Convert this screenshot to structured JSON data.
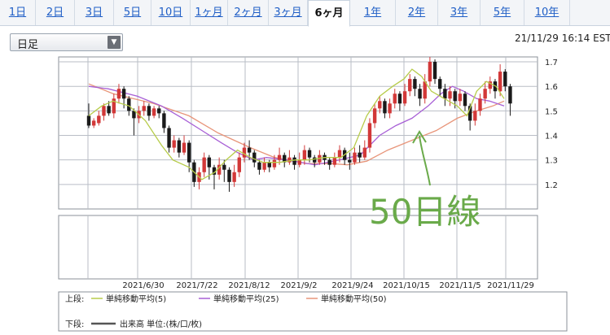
{
  "tabs": [
    "1日",
    "2日",
    "3日",
    "5日",
    "10日",
    "1ヶ月",
    "2ヶ月",
    "3ヶ月",
    "6ヶ月",
    "1年",
    "2年",
    "3年",
    "5年",
    "10年"
  ],
  "active_tab": "6ヶ月",
  "period_select": "日足",
  "timestamp": "21/11/29 16:14 EST",
  "annotation": "50日線",
  "colors": {
    "up": "#d23838",
    "down": "#1a1a1a",
    "ma5": "#b7cc4a",
    "ma25": "#a860d6",
    "ma50": "#e8957a",
    "annot": "#6aaa4a",
    "grid": "#b9bec6"
  },
  "chart_data": {
    "type": "candlestick",
    "ylim": [
      1.1,
      1.72
    ],
    "yticks": [
      "1.2",
      "1.3",
      "1.4",
      "1.5",
      "1.6",
      "1.7"
    ],
    "xticks": [
      "2021/6/30",
      "2021/7/22",
      "2021/8/12",
      "2021/9/2",
      "2021/9/24",
      "2021/10/15",
      "2021/11/5",
      "2021/11/29"
    ],
    "legend": {
      "upper_label": "上段:",
      "lower_label": "下段:",
      "items": [
        "単純移動平均(5)",
        "単純移動平均(25)",
        "単純移動平均(50)"
      ],
      "volume": "出来高 単位:(株/口/枚)"
    },
    "ma50": [
      [
        0,
        1.61
      ],
      [
        15,
        1.57
      ],
      [
        40,
        1.53
      ],
      [
        62,
        1.48
      ],
      [
        80,
        1.41
      ],
      [
        100,
        1.35
      ],
      [
        115,
        1.31
      ],
      [
        135,
        1.285
      ],
      [
        150,
        1.285
      ],
      [
        160,
        1.28
      ],
      [
        172,
        1.295
      ],
      [
        185,
        1.34
      ],
      [
        200,
        1.38
      ],
      [
        215,
        1.42
      ],
      [
        228,
        1.47
      ],
      [
        240,
        1.5
      ],
      [
        250,
        1.52
      ],
      [
        257,
        1.54
      ]
    ],
    "ma25": [
      [
        0,
        1.6
      ],
      [
        12,
        1.59
      ],
      [
        30,
        1.56
      ],
      [
        45,
        1.52
      ],
      [
        58,
        1.47
      ],
      [
        70,
        1.42
      ],
      [
        82,
        1.37
      ],
      [
        92,
        1.33
      ],
      [
        102,
        1.3
      ],
      [
        110,
        1.31
      ],
      [
        122,
        1.3
      ],
      [
        140,
        1.28
      ],
      [
        155,
        1.3
      ],
      [
        168,
        1.32
      ],
      [
        180,
        1.4
      ],
      [
        190,
        1.44
      ],
      [
        200,
        1.47
      ],
      [
        210,
        1.52
      ],
      [
        218,
        1.57
      ],
      [
        225,
        1.6
      ],
      [
        232,
        1.58
      ],
      [
        240,
        1.55
      ],
      [
        248,
        1.54
      ],
      [
        257,
        1.52
      ]
    ],
    "ma5": [
      [
        0,
        1.48
      ],
      [
        8,
        1.52
      ],
      [
        15,
        1.54
      ],
      [
        25,
        1.52
      ],
      [
        35,
        1.46
      ],
      [
        45,
        1.36
      ],
      [
        52,
        1.3
      ],
      [
        62,
        1.27
      ],
      [
        70,
        1.22
      ],
      [
        78,
        1.25
      ],
      [
        85,
        1.3
      ],
      [
        92,
        1.34
      ],
      [
        100,
        1.31
      ],
      [
        108,
        1.29
      ],
      [
        118,
        1.29
      ],
      [
        128,
        1.3
      ],
      [
        136,
        1.3
      ],
      [
        146,
        1.31
      ],
      [
        156,
        1.31
      ],
      [
        164,
        1.35
      ],
      [
        172,
        1.48
      ],
      [
        180,
        1.56
      ],
      [
        188,
        1.6
      ],
      [
        195,
        1.63
      ],
      [
        200,
        1.67
      ],
      [
        206,
        1.64
      ],
      [
        212,
        1.58
      ],
      [
        220,
        1.55
      ],
      [
        228,
        1.52
      ],
      [
        234,
        1.48
      ],
      [
        240,
        1.58
      ],
      [
        246,
        1.62
      ],
      [
        252,
        1.6
      ],
      [
        257,
        1.55
      ]
    ],
    "candles": [
      [
        0,
        1.48,
        1.44,
        1.53,
        1.43
      ],
      [
        1,
        1.44,
        1.46,
        1.47,
        1.43
      ],
      [
        2,
        1.45,
        1.48,
        1.5,
        1.44
      ],
      [
        3,
        1.48,
        1.52,
        1.53,
        1.46
      ],
      [
        4,
        1.52,
        1.49,
        1.54,
        1.48
      ],
      [
        5,
        1.49,
        1.55,
        1.57,
        1.47
      ],
      [
        6,
        1.55,
        1.59,
        1.61,
        1.53
      ],
      [
        7,
        1.59,
        1.55,
        1.6,
        1.51
      ],
      [
        8,
        1.55,
        1.5,
        1.56,
        1.48
      ],
      [
        9,
        1.5,
        1.47,
        1.51,
        1.4
      ],
      [
        10,
        1.47,
        1.5,
        1.52,
        1.45
      ],
      [
        11,
        1.5,
        1.52,
        1.54,
        1.48
      ],
      [
        12,
        1.52,
        1.48,
        1.53,
        1.46
      ],
      [
        13,
        1.48,
        1.51,
        1.52,
        1.47
      ],
      [
        14,
        1.51,
        1.49,
        1.52,
        1.47
      ],
      [
        15,
        1.49,
        1.43,
        1.5,
        1.41
      ],
      [
        16,
        1.43,
        1.35,
        1.44,
        1.33
      ],
      [
        17,
        1.35,
        1.38,
        1.4,
        1.33
      ],
      [
        18,
        1.38,
        1.33,
        1.39,
        1.31
      ],
      [
        19,
        1.33,
        1.37,
        1.4,
        1.32
      ],
      [
        20,
        1.37,
        1.29,
        1.38,
        1.25
      ],
      [
        21,
        1.29,
        1.21,
        1.3,
        1.19
      ],
      [
        22,
        1.21,
        1.25,
        1.27,
        1.18
      ],
      [
        23,
        1.25,
        1.31,
        1.33,
        1.23
      ],
      [
        24,
        1.31,
        1.27,
        1.32,
        1.22
      ],
      [
        25,
        1.27,
        1.24,
        1.28,
        1.18
      ],
      [
        26,
        1.24,
        1.28,
        1.31,
        1.22
      ],
      [
        27,
        1.28,
        1.26,
        1.3,
        1.21
      ],
      [
        28,
        1.26,
        1.21,
        1.27,
        1.17
      ],
      [
        29,
        1.21,
        1.25,
        1.28,
        1.19
      ],
      [
        30,
        1.25,
        1.31,
        1.33,
        1.23
      ],
      [
        31,
        1.31,
        1.35,
        1.37,
        1.29
      ],
      [
        32,
        1.35,
        1.33,
        1.38,
        1.3
      ],
      [
        33,
        1.33,
        1.29,
        1.34,
        1.27
      ],
      [
        34,
        1.29,
        1.26,
        1.3,
        1.24
      ],
      [
        35,
        1.26,
        1.29,
        1.31,
        1.25
      ],
      [
        36,
        1.29,
        1.27,
        1.3,
        1.25
      ],
      [
        37,
        1.27,
        1.3,
        1.32,
        1.26
      ],
      [
        38,
        1.3,
        1.32,
        1.35,
        1.28
      ],
      [
        39,
        1.32,
        1.29,
        1.33,
        1.27
      ],
      [
        40,
        1.29,
        1.31,
        1.34,
        1.28
      ],
      [
        41,
        1.31,
        1.28,
        1.32,
        1.26
      ],
      [
        42,
        1.28,
        1.3,
        1.33,
        1.27
      ],
      [
        43,
        1.3,
        1.34,
        1.36,
        1.28
      ],
      [
        44,
        1.34,
        1.31,
        1.35,
        1.29
      ],
      [
        45,
        1.31,
        1.29,
        1.32,
        1.27
      ],
      [
        46,
        1.29,
        1.32,
        1.34,
        1.28
      ],
      [
        47,
        1.32,
        1.3,
        1.33,
        1.28
      ],
      [
        48,
        1.3,
        1.28,
        1.31,
        1.26
      ],
      [
        49,
        1.28,
        1.31,
        1.33,
        1.27
      ],
      [
        50,
        1.31,
        1.34,
        1.36,
        1.29
      ],
      [
        51,
        1.34,
        1.3,
        1.35,
        1.28
      ],
      [
        52,
        1.3,
        1.29,
        1.33,
        1.26
      ],
      [
        53,
        1.29,
        1.33,
        1.35,
        1.28
      ],
      [
        54,
        1.33,
        1.31,
        1.36,
        1.29
      ],
      [
        55,
        1.31,
        1.35,
        1.38,
        1.3
      ],
      [
        56,
        1.35,
        1.45,
        1.47,
        1.33
      ],
      [
        57,
        1.45,
        1.51,
        1.53,
        1.43
      ],
      [
        58,
        1.51,
        1.54,
        1.56,
        1.49
      ],
      [
        59,
        1.54,
        1.49,
        1.55,
        1.47
      ],
      [
        60,
        1.49,
        1.53,
        1.55,
        1.47
      ],
      [
        61,
        1.53,
        1.57,
        1.59,
        1.51
      ],
      [
        62,
        1.57,
        1.53,
        1.58,
        1.5
      ],
      [
        63,
        1.53,
        1.58,
        1.61,
        1.52
      ],
      [
        64,
        1.58,
        1.63,
        1.65,
        1.56
      ],
      [
        65,
        1.63,
        1.59,
        1.64,
        1.56
      ],
      [
        66,
        1.59,
        1.55,
        1.61,
        1.52
      ],
      [
        67,
        1.55,
        1.62,
        1.65,
        1.53
      ],
      [
        68,
        1.62,
        1.7,
        1.72,
        1.6
      ],
      [
        69,
        1.7,
        1.63,
        1.71,
        1.61
      ],
      [
        70,
        1.63,
        1.59,
        1.64,
        1.56
      ],
      [
        71,
        1.59,
        1.55,
        1.61,
        1.52
      ],
      [
        72,
        1.55,
        1.58,
        1.6,
        1.52
      ],
      [
        73,
        1.58,
        1.54,
        1.59,
        1.51
      ],
      [
        74,
        1.54,
        1.57,
        1.59,
        1.52
      ],
      [
        75,
        1.57,
        1.52,
        1.58,
        1.5
      ],
      [
        76,
        1.52,
        1.46,
        1.53,
        1.42
      ],
      [
        77,
        1.46,
        1.5,
        1.53,
        1.44
      ],
      [
        78,
        1.5,
        1.55,
        1.57,
        1.48
      ],
      [
        79,
        1.55,
        1.59,
        1.62,
        1.53
      ],
      [
        80,
        1.59,
        1.62,
        1.64,
        1.57
      ],
      [
        81,
        1.62,
        1.58,
        1.63,
        1.55
      ],
      [
        82,
        1.58,
        1.66,
        1.69,
        1.56
      ],
      [
        83,
        1.66,
        1.6,
        1.67,
        1.58
      ],
      [
        84,
        1.6,
        1.53,
        1.61,
        1.48
      ]
    ]
  }
}
